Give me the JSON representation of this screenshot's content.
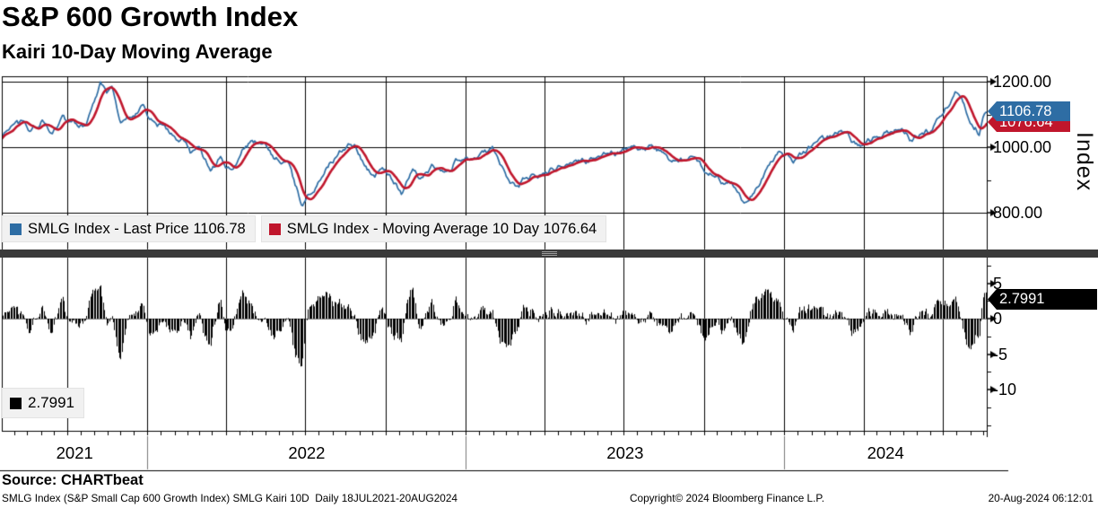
{
  "header": {
    "title": "S&P 600 Growth Index",
    "subtitle": "Kairi 10-Day Moving Average"
  },
  "panels": {
    "top": {
      "legend": [
        {
          "swatch_color": "#2E6DA4",
          "label": "SMLG Index - Last Price 1106.78"
        },
        {
          "swatch_color": "#C0162C",
          "label": "SMLG Index - Moving Average 10 Day 1076.64"
        }
      ],
      "axis_right": {
        "title": "Index",
        "major_ticks": [
          {
            "value": 1200,
            "label": "1200.00"
          },
          {
            "value": 1000,
            "label": "1000.00"
          },
          {
            "value": 800,
            "label": "800.00"
          }
        ],
        "minor_ticks": [
          900,
          1100
        ]
      },
      "badges": [
        {
          "id": "last-price",
          "label": "1106.78",
          "bg": "#2E6DA4"
        },
        {
          "id": "moving-average",
          "label": "1076.64",
          "bg": "#C0162C"
        }
      ]
    },
    "bottom": {
      "legend": [
        {
          "swatch_color": "#000000",
          "label": "2.7991"
        }
      ],
      "axis_right": {
        "major_ticks": [
          {
            "value": 5,
            "label": "5"
          },
          {
            "value": 0,
            "label": "0"
          },
          {
            "value": -5,
            "label": "-5"
          },
          {
            "value": -10,
            "label": "-10"
          }
        ],
        "minor_step": 2.5
      },
      "badges": [
        {
          "id": "kairi-last",
          "label": "2.7991",
          "bg": "#000000"
        }
      ]
    }
  },
  "x_axis": {
    "year_labels": [
      "2021",
      "2022",
      "2023",
      "2024"
    ]
  },
  "footer": {
    "source": "Source: CHARTbeat",
    "description": "SMLG Index (S&P Small Cap 600 Growth Index) SMLG Kairi 10D  Daily 18JUL2021-20AUG2024",
    "copyright": "Copyright© 2024 Bloomberg Finance L.P.",
    "timestamp": "20-Aug-2024 06:12:01"
  },
  "chart_data": [
    {
      "type": "line",
      "title": "S&P 600 Growth Index",
      "x_range": [
        "2021-07-18",
        "2024-08-20"
      ],
      "ylim": [
        690,
        1215
      ],
      "ylabel": "Index",
      "yticks_major": [
        800,
        1000,
        1200
      ],
      "yticks_minor": [
        900,
        1100
      ],
      "grid": "quarterly-vertical, major-horizontal",
      "legend_position": "bottom-left-inside",
      "series": [
        {
          "name": "SMLG Index - Last Price",
          "color": "#2E6DA4",
          "last": 1106.78,
          "keypoints_frac_value": [
            [
              0.0,
              1030
            ],
            [
              0.011,
              1058
            ],
            [
              0.02,
              1072
            ],
            [
              0.029,
              1048
            ],
            [
              0.04,
              1086
            ],
            [
              0.051,
              1042
            ],
            [
              0.062,
              1092
            ],
            [
              0.072,
              1068
            ],
            [
              0.083,
              1055
            ],
            [
              0.092,
              1118
            ],
            [
              0.1,
              1187
            ],
            [
              0.106,
              1160
            ],
            [
              0.112,
              1172
            ],
            [
              0.121,
              1062
            ],
            [
              0.131,
              1090
            ],
            [
              0.142,
              1136
            ],
            [
              0.153,
              1080
            ],
            [
              0.162,
              1068
            ],
            [
              0.173,
              1042
            ],
            [
              0.184,
              1020
            ],
            [
              0.192,
              972
            ],
            [
              0.201,
              1002
            ],
            [
              0.212,
              938
            ],
            [
              0.223,
              968
            ],
            [
              0.234,
              928
            ],
            [
              0.245,
              995
            ],
            [
              0.256,
              1012
            ],
            [
              0.267,
              1018
            ],
            [
              0.276,
              985
            ],
            [
              0.284,
              952
            ],
            [
              0.29,
              958
            ],
            [
              0.297,
              885
            ],
            [
              0.305,
              828
            ],
            [
              0.314,
              868
            ],
            [
              0.324,
              905
            ],
            [
              0.335,
              958
            ],
            [
              0.347,
              1005
            ],
            [
              0.358,
              1012
            ],
            [
              0.368,
              952
            ],
            [
              0.378,
              908
            ],
            [
              0.386,
              932
            ],
            [
              0.396,
              898
            ],
            [
              0.406,
              862
            ],
            [
              0.417,
              940
            ],
            [
              0.426,
              905
            ],
            [
              0.437,
              940
            ],
            [
              0.448,
              922
            ],
            [
              0.461,
              958
            ],
            [
              0.475,
              968
            ],
            [
              0.487,
              985
            ],
            [
              0.498,
              990
            ],
            [
              0.509,
              920
            ],
            [
              0.521,
              878
            ],
            [
              0.533,
              905
            ],
            [
              0.546,
              928
            ],
            [
              0.558,
              942
            ],
            [
              0.571,
              948
            ],
            [
              0.585,
              962
            ],
            [
              0.599,
              972
            ],
            [
              0.613,
              985
            ],
            [
              0.627,
              992
            ],
            [
              0.641,
              998
            ],
            [
              0.654,
              1002
            ],
            [
              0.668,
              985
            ],
            [
              0.68,
              948
            ],
            [
              0.691,
              960
            ],
            [
              0.702,
              955
            ],
            [
              0.714,
              920
            ],
            [
              0.728,
              900
            ],
            [
              0.742,
              878
            ],
            [
              0.754,
              832
            ],
            [
              0.767,
              882
            ],
            [
              0.779,
              945
            ],
            [
              0.791,
              985
            ],
            [
              0.804,
              958
            ],
            [
              0.816,
              985
            ],
            [
              0.829,
              1012
            ],
            [
              0.843,
              1032
            ],
            [
              0.857,
              1045
            ],
            [
              0.871,
              1002
            ],
            [
              0.885,
              1022
            ],
            [
              0.898,
              1040
            ],
            [
              0.911,
              1055
            ],
            [
              0.922,
              1028
            ],
            [
              0.933,
              1040
            ],
            [
              0.945,
              1045
            ],
            [
              0.957,
              1120
            ],
            [
              0.968,
              1160
            ],
            [
              0.975,
              1145
            ],
            [
              0.984,
              1058
            ],
            [
              0.992,
              1042
            ],
            [
              1.0,
              1106.78
            ]
          ]
        },
        {
          "name": "SMLG Index - Moving Average 10 Day",
          "color": "#C0162C",
          "last": 1076.64,
          "derived": "10-day rolling mean of Last Price series"
        }
      ]
    },
    {
      "type": "bar",
      "title": "Kairi 10-Day Moving Average",
      "x_range": [
        "2021-07-18",
        "2024-08-20"
      ],
      "ylim": [
        -15.8,
        8.6
      ],
      "yticks_major": [
        5,
        0,
        -5,
        -10
      ],
      "yticks_minor_step": 2.5,
      "zero_line_color": "#808080",
      "series": [
        {
          "name": "SMLG Kairi 10D",
          "color": "#000000",
          "last": 2.7991,
          "derived": "100 * (price - MA10) / MA10, daily bars"
        }
      ]
    }
  ]
}
